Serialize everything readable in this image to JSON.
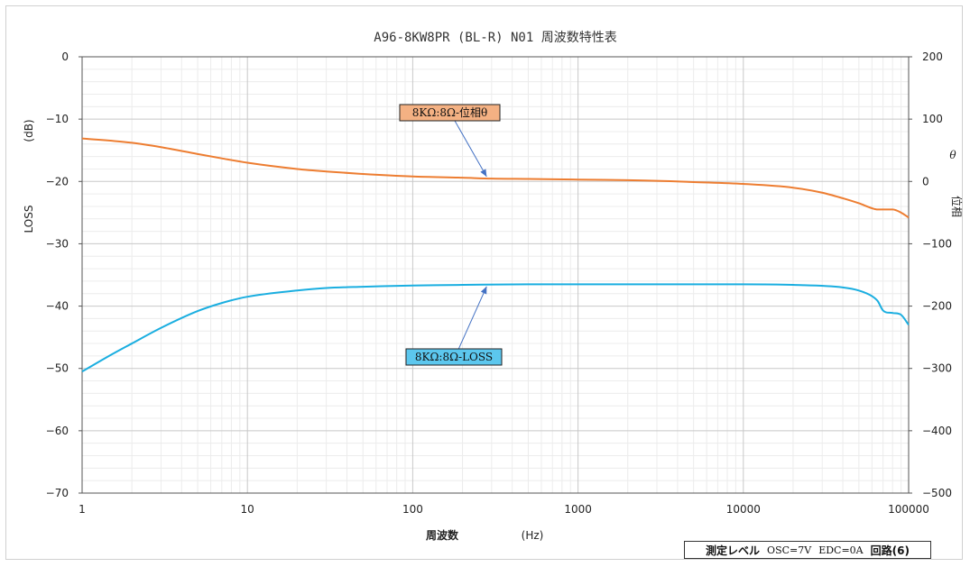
{
  "chart_data": {
    "type": "line",
    "title": "A96-8KW8PR  (BL-R) N01 周波数特性表",
    "xlabel": "周波数",
    "xunit": "(Hz)",
    "x_scale": "log",
    "xlim": [
      1,
      100000
    ],
    "xticks": [
      "1",
      "10",
      "100",
      "1000",
      "10000",
      "100000"
    ],
    "ylabel_left": "LOSS",
    "yunit_left": "(dB)",
    "ylim_left": [
      -70,
      0
    ],
    "yticks_left": [
      "0",
      "−10",
      "−20",
      "−30",
      "−40",
      "−50",
      "−60",
      "−70"
    ],
    "ylabel_right": "位相",
    "ysymbol_right": "θ",
    "ylim_right": [
      -500,
      200
    ],
    "yticks_right": [
      "200",
      "100",
      "0",
      "−100",
      "−200",
      "−300",
      "−400",
      "−500"
    ],
    "grid": true,
    "series": [
      {
        "name": "8KΩ:8Ω-位相θ",
        "axis": "right",
        "color": "#ED7D31",
        "x": [
          1,
          2,
          3,
          5,
          7,
          10,
          20,
          30,
          50,
          100,
          200,
          300,
          500,
          1000,
          2000,
          3000,
          5000,
          10000,
          20000,
          30000,
          40000,
          50000,
          60000,
          65000,
          70000,
          80000,
          90000,
          100000
        ],
        "values": [
          69,
          62,
          55,
          44,
          37,
          30,
          20,
          16,
          12,
          8,
          6,
          4.5,
          4,
          3,
          2,
          1,
          -1,
          -4,
          -10,
          -18,
          -27,
          -35,
          -43,
          -45,
          -45,
          -45,
          -50,
          -58
        ]
      },
      {
        "name": "8KΩ:8Ω-LOSS",
        "axis": "left",
        "color": "#1AAEE0",
        "x": [
          1,
          1.5,
          2,
          3,
          5,
          7,
          10,
          20,
          30,
          50,
          100,
          200,
          500,
          1000,
          5000,
          10000,
          20000,
          40000,
          50000,
          60000,
          65000,
          70000,
          80000,
          90000,
          100000
        ],
        "values": [
          -50.5,
          -47.8,
          -46,
          -43.5,
          -40.8,
          -39.5,
          -38.5,
          -37.5,
          -37.1,
          -36.9,
          -36.7,
          -36.6,
          -36.5,
          -36.5,
          -36.5,
          -36.5,
          -36.6,
          -37,
          -37.5,
          -38.4,
          -39.2,
          -40.7,
          -41.1,
          -41.4,
          -43
        ]
      }
    ],
    "annotations": [
      {
        "label": "8KΩ:8Ω-位相θ",
        "series": 0,
        "points_to_x": 280,
        "fill": "#F4B183"
      },
      {
        "label": "8KΩ:8Ω-LOSS",
        "series": 1,
        "points_to_x": 280,
        "fill": "#5CC7EE"
      }
    ],
    "note": {
      "label": "測定レベル",
      "osc": "OSC=7V",
      "edc": "EDC=0A",
      "circuit": "回路(6)"
    }
  }
}
